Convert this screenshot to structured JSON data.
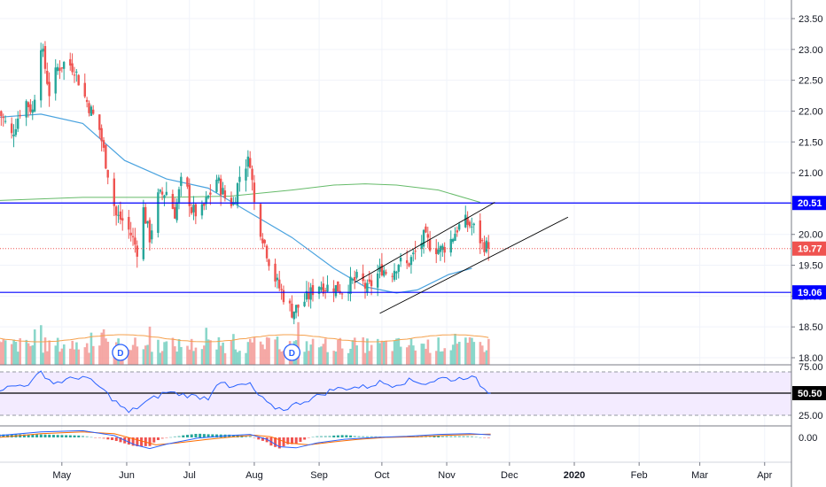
{
  "chart_data": {
    "type": "candlestick",
    "xlabel": "",
    "ylabel": "",
    "price_axis": {
      "ylim": [
        17.95,
        23.6
      ],
      "ticks": [
        "23.50",
        "23.00",
        "22.50",
        "22.00",
        "21.50",
        "21.00",
        "20.50",
        "20.00",
        "19.50",
        "19.00",
        "18.50",
        "18.00"
      ]
    },
    "time_axis": {
      "labels": [
        {
          "text": "May",
          "day": 30
        },
        {
          "text": "Jun",
          "day": 61
        },
        {
          "text": "Jul",
          "day": 91
        },
        {
          "text": "Aug",
          "day": 122
        },
        {
          "text": "Sep",
          "day": 153
        },
        {
          "text": "Oct",
          "day": 183
        },
        {
          "text": "Nov",
          "day": 214
        },
        {
          "text": "Dec",
          "day": 244
        },
        {
          "text": "2020",
          "day": 275,
          "bold": true
        },
        {
          "text": "Feb",
          "day": 306
        },
        {
          "text": "Mar",
          "day": 335
        },
        {
          "text": "Apr",
          "day": 366
        }
      ]
    },
    "price_anchors": [
      [
        0,
        22.0
      ],
      [
        6,
        21.6
      ],
      [
        12,
        22.2
      ],
      [
        16,
        22.0
      ],
      [
        20,
        23.1
      ],
      [
        24,
        22.3
      ],
      [
        28,
        22.7
      ],
      [
        32,
        22.8
      ],
      [
        36,
        22.7
      ],
      [
        40,
        22.3
      ],
      [
        44,
        22.0
      ],
      [
        48,
        21.7
      ],
      [
        52,
        21.0
      ],
      [
        56,
        20.3
      ],
      [
        60,
        20.2
      ],
      [
        63,
        20.0
      ],
      [
        66,
        19.75
      ],
      [
        69,
        20.4
      ],
      [
        72,
        19.95
      ],
      [
        76,
        20.6
      ],
      [
        80,
        20.7
      ],
      [
        84,
        20.35
      ],
      [
        88,
        21.0
      ],
      [
        92,
        20.4
      ],
      [
        96,
        20.3
      ],
      [
        100,
        20.6
      ],
      [
        104,
        20.9
      ],
      [
        108,
        20.6
      ],
      [
        112,
        20.5
      ],
      [
        116,
        21.1
      ],
      [
        120,
        21.2
      ],
      [
        122,
        20.5
      ],
      [
        124,
        20.2
      ],
      [
        127,
        19.85
      ],
      [
        130,
        19.45
      ],
      [
        133,
        19.2
      ],
      [
        136,
        19.0
      ],
      [
        140,
        18.75
      ],
      [
        144,
        18.85
      ],
      [
        148,
        19.0
      ],
      [
        152,
        19.2
      ],
      [
        156,
        19.15
      ],
      [
        160,
        19.15
      ],
      [
        164,
        19.1
      ],
      [
        168,
        19.2
      ],
      [
        172,
        19.3
      ],
      [
        176,
        19.1
      ],
      [
        180,
        19.3
      ],
      [
        183,
        19.45
      ],
      [
        187,
        19.35
      ],
      [
        191,
        19.55
      ],
      [
        195,
        19.5
      ],
      [
        199,
        19.7
      ],
      [
        203,
        19.95
      ],
      [
        207,
        19.8
      ],
      [
        211,
        19.75
      ],
      [
        215,
        19.85
      ],
      [
        219,
        20.1
      ],
      [
        223,
        20.2
      ],
      [
        227,
        20.1
      ],
      [
        231,
        19.85
      ],
      [
        235,
        19.77
      ]
    ],
    "last_day": 235,
    "sma_50": [
      [
        0,
        21.9
      ],
      [
        20,
        21.95
      ],
      [
        40,
        21.8
      ],
      [
        60,
        21.2
      ],
      [
        80,
        20.9
      ],
      [
        100,
        20.75
      ],
      [
        120,
        20.35
      ],
      [
        140,
        19.95
      ],
      [
        160,
        19.45
      ],
      [
        175,
        19.15
      ],
      [
        190,
        19.05
      ],
      [
        200,
        19.1
      ],
      [
        215,
        19.35
      ],
      [
        226,
        19.45
      ]
    ],
    "sma_200": [
      [
        0,
        20.55
      ],
      [
        40,
        20.6
      ],
      [
        80,
        20.6
      ],
      [
        110,
        20.62
      ],
      [
        140,
        20.72
      ],
      [
        160,
        20.8
      ],
      [
        175,
        20.82
      ],
      [
        190,
        20.8
      ],
      [
        210,
        20.72
      ],
      [
        230,
        20.52
      ]
    ],
    "horizontal_lines": [
      {
        "label": "20.51",
        "value": 20.51,
        "color": "#0000ff"
      },
      {
        "label": "19.06",
        "value": 19.06,
        "color": "#0000ff"
      }
    ],
    "last_price": {
      "label": "19.77",
      "value": 19.77,
      "color": "#ef5350"
    },
    "channel": {
      "upper": [
        [
          170,
          19.22
        ],
        [
          237,
          20.52
        ]
      ],
      "lower": [
        [
          182,
          18.72
        ],
        [
          272,
          20.28
        ]
      ],
      "color": "#000000"
    },
    "dividend_markers": [
      {
        "day": 58,
        "text": "D"
      },
      {
        "day": 140,
        "text": "D"
      }
    ],
    "rsi": {
      "label": "50.50",
      "value": 50.5,
      "ticks": [
        "75.00",
        "50.50",
        "25.00"
      ],
      "band": [
        25,
        75
      ],
      "anchors": [
        [
          0,
          55
        ],
        [
          15,
          62
        ],
        [
          20,
          75
        ],
        [
          26,
          62
        ],
        [
          40,
          70
        ],
        [
          48,
          58
        ],
        [
          56,
          40
        ],
        [
          62,
          28
        ],
        [
          70,
          40
        ],
        [
          80,
          52
        ],
        [
          90,
          48
        ],
        [
          100,
          45
        ],
        [
          105,
          66
        ],
        [
          110,
          56
        ],
        [
          116,
          60
        ],
        [
          120,
          60
        ],
        [
          124,
          48
        ],
        [
          130,
          35
        ],
        [
          136,
          32
        ],
        [
          142,
          38
        ],
        [
          150,
          45
        ],
        [
          160,
          55
        ],
        [
          168,
          57
        ],
        [
          176,
          58
        ],
        [
          182,
          63
        ],
        [
          188,
          60
        ],
        [
          196,
          65
        ],
        [
          204,
          62
        ],
        [
          212,
          68
        ],
        [
          218,
          66
        ],
        [
          224,
          70
        ],
        [
          228,
          66
        ],
        [
          232,
          55
        ],
        [
          235,
          50.5
        ]
      ],
      "color": "#2962ff"
    },
    "macd": {
      "zero_label": "0.00",
      "macd_line": [
        [
          0,
          0.05
        ],
        [
          20,
          0.15
        ],
        [
          40,
          0.18
        ],
        [
          55,
          0.05
        ],
        [
          65,
          -0.2
        ],
        [
          72,
          -0.3
        ],
        [
          80,
          -0.18
        ],
        [
          95,
          -0.02
        ],
        [
          110,
          0.05
        ],
        [
          120,
          0.08
        ],
        [
          128,
          -0.05
        ],
        [
          134,
          -0.25
        ],
        [
          142,
          -0.28
        ],
        [
          152,
          -0.15
        ],
        [
          165,
          -0.05
        ],
        [
          180,
          0.0
        ],
        [
          195,
          0.03
        ],
        [
          210,
          0.08
        ],
        [
          225,
          0.1
        ],
        [
          235,
          0.07
        ]
      ],
      "signal_line": [
        [
          0,
          0.0
        ],
        [
          20,
          0.1
        ],
        [
          40,
          0.15
        ],
        [
          55,
          0.1
        ],
        [
          65,
          -0.05
        ],
        [
          75,
          -0.2
        ],
        [
          85,
          -0.15
        ],
        [
          100,
          -0.05
        ],
        [
          115,
          0.03
        ],
        [
          122,
          0.06
        ],
        [
          130,
          0.02
        ],
        [
          138,
          -0.15
        ],
        [
          148,
          -0.2
        ],
        [
          160,
          -0.12
        ],
        [
          172,
          -0.05
        ],
        [
          185,
          0.0
        ],
        [
          200,
          0.02
        ],
        [
          215,
          0.06
        ],
        [
          228,
          0.08
        ],
        [
          235,
          0.09
        ]
      ],
      "macd_color": "#2962ff",
      "signal_color": "#ff6d00"
    },
    "colors": {
      "up": "#26a69a",
      "down": "#ef5350",
      "volume_up": "#7dd3c4",
      "volume_down": "#f4a09c",
      "sma_50": "#4aa3df",
      "sma_200": "#66bb6a",
      "volume_ma": "#f5a04c",
      "rsi_band": "#f3ebff",
      "grid": "#f0f3fa"
    }
  }
}
